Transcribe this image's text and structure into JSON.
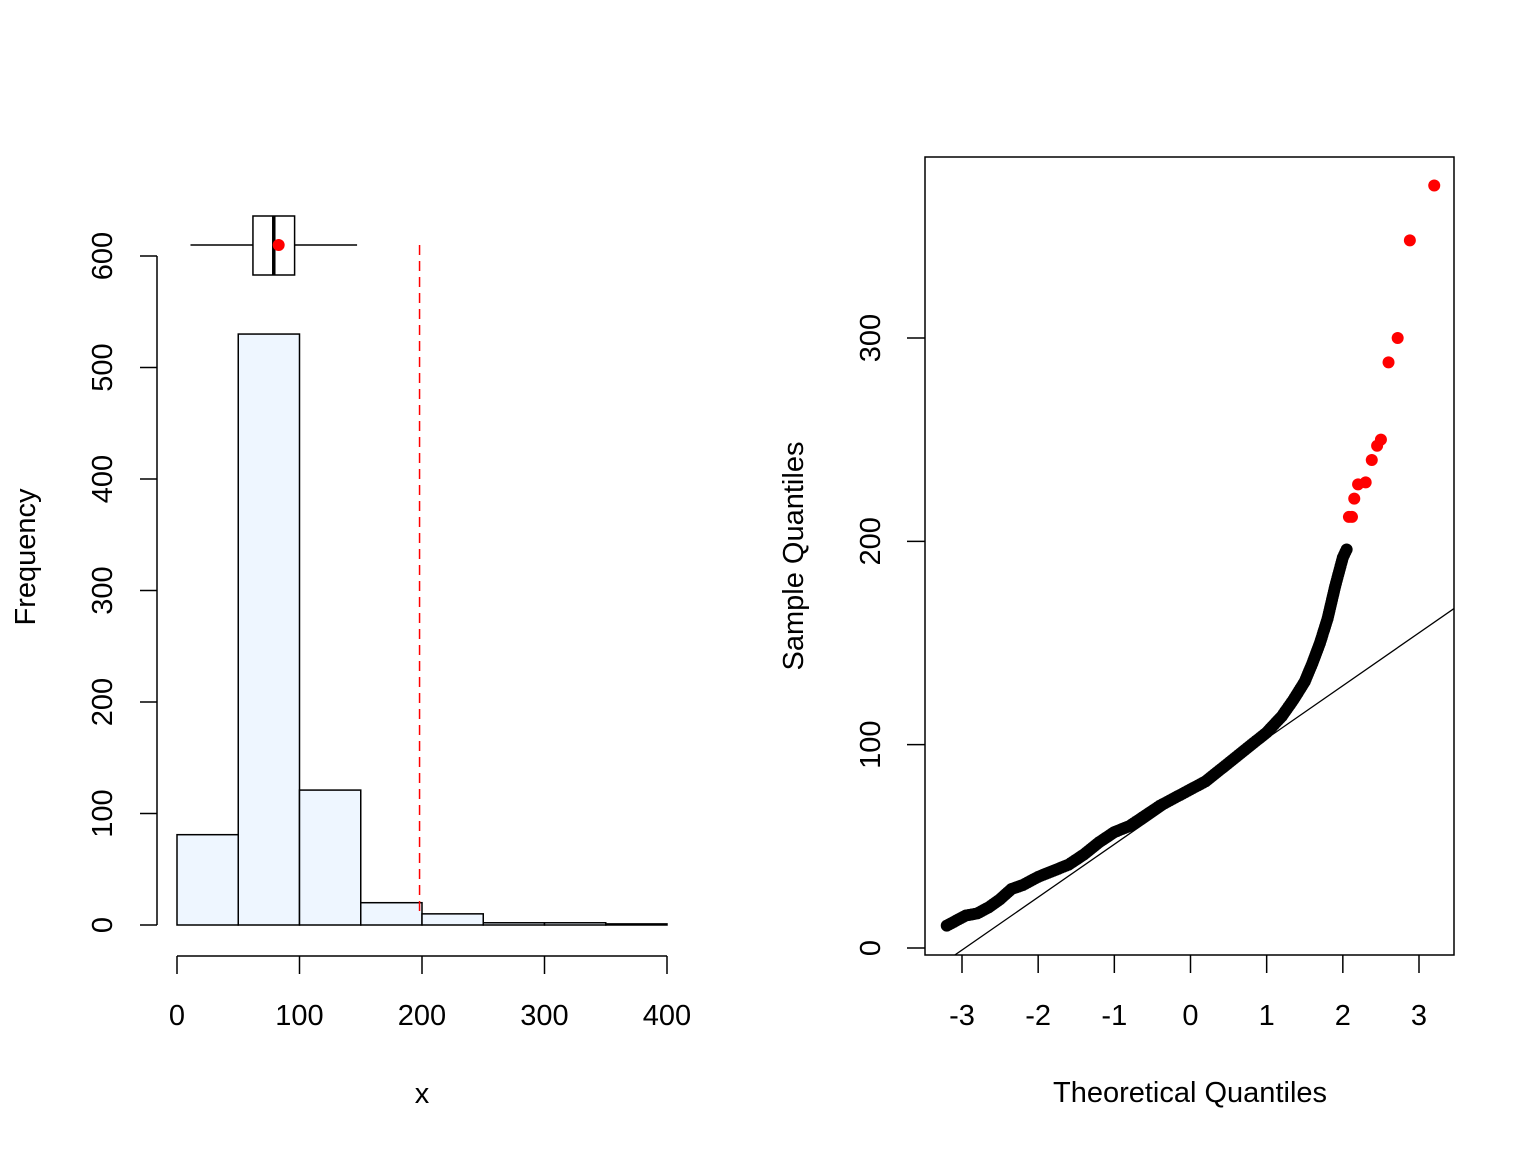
{
  "colors": {
    "bar_fill": "#eef6ff",
    "stroke": "#000000",
    "highlight": "#ff0000",
    "normal_point": "#000000"
  },
  "chart_data": [
    {
      "type": "bar",
      "subtype": "histogram-with-boxplot",
      "xlabel": "x",
      "ylabel": "Frequency",
      "xlim": [
        0,
        400
      ],
      "ylim": [
        0,
        600
      ],
      "xticks": [
        "0",
        "100",
        "200",
        "300",
        "400"
      ],
      "yticks": [
        "0",
        "100",
        "200",
        "300",
        "400",
        "500",
        "600"
      ],
      "bins": [
        {
          "from": 0,
          "to": 50,
          "count": 81
        },
        {
          "from": 50,
          "to": 100,
          "count": 530
        },
        {
          "from": 100,
          "to": 150,
          "count": 121
        },
        {
          "from": 150,
          "to": 200,
          "count": 20
        },
        {
          "from": 200,
          "to": 250,
          "count": 10
        },
        {
          "from": 250,
          "to": 300,
          "count": 2
        },
        {
          "from": 300,
          "to": 350,
          "count": 2
        },
        {
          "from": 350,
          "to": 400,
          "count": 1
        }
      ],
      "boxplot": {
        "whisker_low": 11,
        "q1": 62,
        "median": 79,
        "q3": 96,
        "whisker_high": 147,
        "mean": 83
      },
      "threshold_line": {
        "x": 198,
        "style": "dashed",
        "color": "red"
      },
      "grid": false
    },
    {
      "type": "scatter",
      "subtype": "normal-qq",
      "xlabel": "Theoretical Quantiles",
      "ylabel": "Sample Quantiles",
      "xlim": [
        -3.3,
        3.4
      ],
      "ylim": [
        -3,
        376
      ],
      "xticks": [
        "-3",
        "-2",
        "-1",
        "0",
        "1",
        "2",
        "3"
      ],
      "yticks": [
        "0",
        "100",
        "200",
        "300"
      ],
      "curve_points": [
        [
          -3.2,
          11
        ],
        [
          -2.95,
          16
        ],
        [
          -2.8,
          17
        ],
        [
          -2.65,
          20
        ],
        [
          -2.5,
          24
        ],
        [
          -2.35,
          29
        ],
        [
          -2.2,
          31
        ],
        [
          -2.0,
          35
        ],
        [
          -1.8,
          38
        ],
        [
          -1.6,
          41
        ],
        [
          -1.4,
          46
        ],
        [
          -1.2,
          52
        ],
        [
          -1.0,
          57
        ],
        [
          -0.8,
          60
        ],
        [
          -0.6,
          65
        ],
        [
          -0.4,
          70
        ],
        [
          -0.2,
          74
        ],
        [
          0.0,
          78
        ],
        [
          0.2,
          82
        ],
        [
          0.4,
          88
        ],
        [
          0.6,
          94
        ],
        [
          0.8,
          100
        ],
        [
          1.0,
          106
        ],
        [
          1.2,
          114
        ],
        [
          1.35,
          122
        ],
        [
          1.5,
          131
        ],
        [
          1.6,
          140
        ],
        [
          1.7,
          150
        ],
        [
          1.8,
          162
        ],
        [
          1.9,
          178
        ],
        [
          1.95,
          185
        ],
        [
          2.0,
          192
        ],
        [
          2.05,
          196
        ]
      ],
      "outliers": [
        [
          2.08,
          212
        ],
        [
          2.12,
          212
        ],
        [
          2.15,
          221
        ],
        [
          2.2,
          228
        ],
        [
          2.3,
          229
        ],
        [
          2.38,
          240
        ],
        [
          2.45,
          247
        ],
        [
          2.5,
          250
        ],
        [
          2.6,
          288
        ],
        [
          2.72,
          300
        ],
        [
          2.88,
          348
        ],
        [
          3.2,
          375
        ]
      ],
      "reference_line": {
        "slope": 26,
        "intercept": 77
      },
      "grid": false
    }
  ]
}
